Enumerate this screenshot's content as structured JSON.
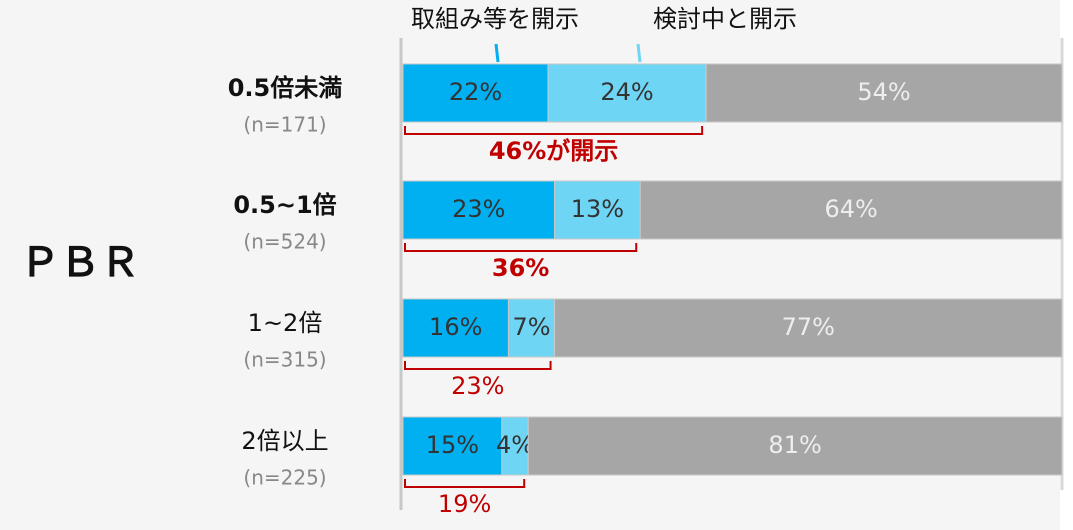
{
  "chart_data": {
    "type": "stacked-bar-horizontal",
    "axis_label": "ＰＢＲ",
    "categories": [
      "0.5倍未満",
      "0.5~1倍",
      "1~2倍",
      "2倍以上"
    ],
    "category_bold": [
      true,
      true,
      false,
      false
    ],
    "category_notes": [
      "(n=171)",
      "(n=524)",
      "(n=315)",
      "(n=225)"
    ],
    "series": [
      {
        "name": "取組み等を開示",
        "color": "#00b0f0",
        "values": [
          22,
          23,
          16,
          15
        ],
        "value_labels": [
          "22%",
          "23%",
          "16%",
          "15%"
        ]
      },
      {
        "name": "検討中と開示",
        "color": "#6fd5f5",
        "values": [
          24,
          13,
          7,
          4
        ],
        "value_labels": [
          "24%",
          "13%",
          "7%",
          "4%"
        ]
      },
      {
        "color": "#a6a6a6",
        "values": [
          54,
          64,
          77,
          81
        ],
        "value_labels": [
          "54%",
          "64%",
          "77%",
          "81%"
        ]
      }
    ],
    "xlim": [
      0,
      100
    ],
    "bracket_labels": [
      "46%が開示",
      "36%",
      "23%",
      "19%"
    ],
    "bracket_bold": [
      true,
      true,
      false,
      false
    ],
    "bracket_color": "#c00000"
  }
}
